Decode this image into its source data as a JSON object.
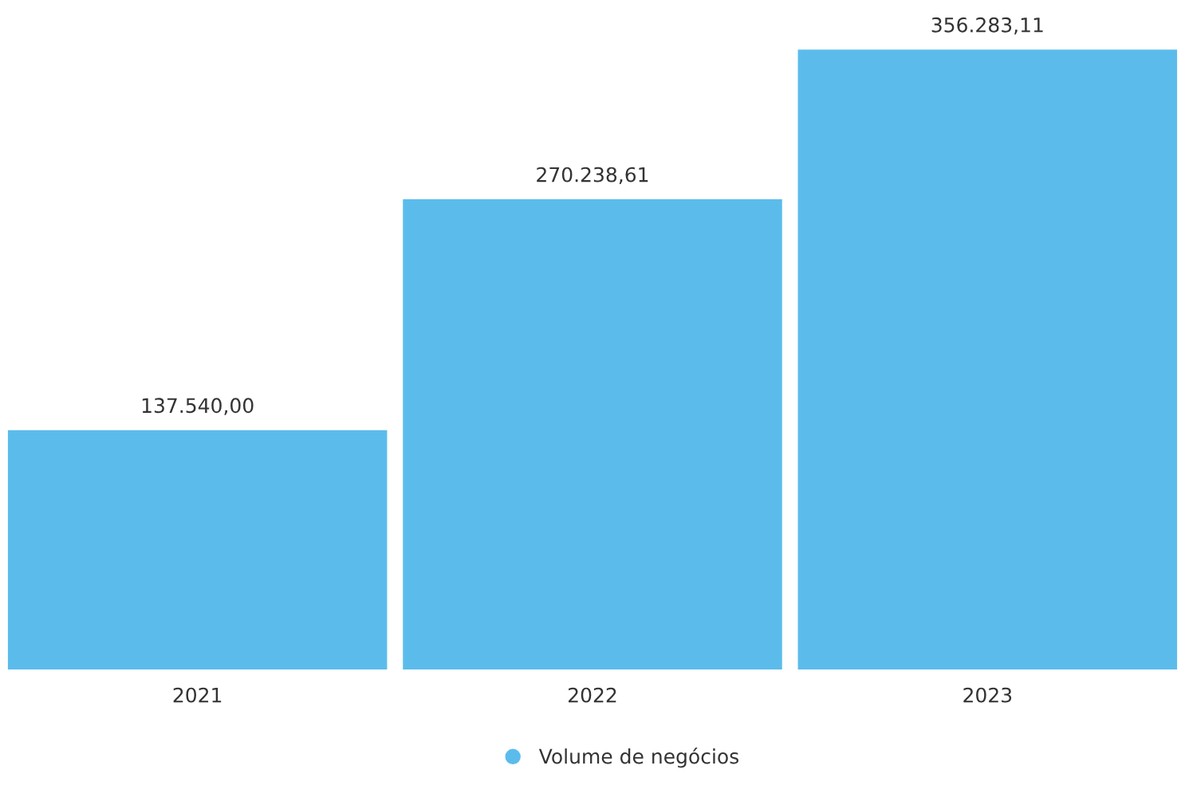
{
  "chart_data": {
    "type": "bar",
    "categories": [
      "2021",
      "2022",
      "2023"
    ],
    "series": [
      {
        "name": "Volume de negócios",
        "color": "#5bbcec",
        "values": [
          137540.0,
          270238.61,
          356283.11
        ],
        "value_labels": [
          "137.540,00",
          "270.238,61",
          "356.283,11"
        ]
      }
    ],
    "grid": false,
    "legend": "bottom"
  }
}
